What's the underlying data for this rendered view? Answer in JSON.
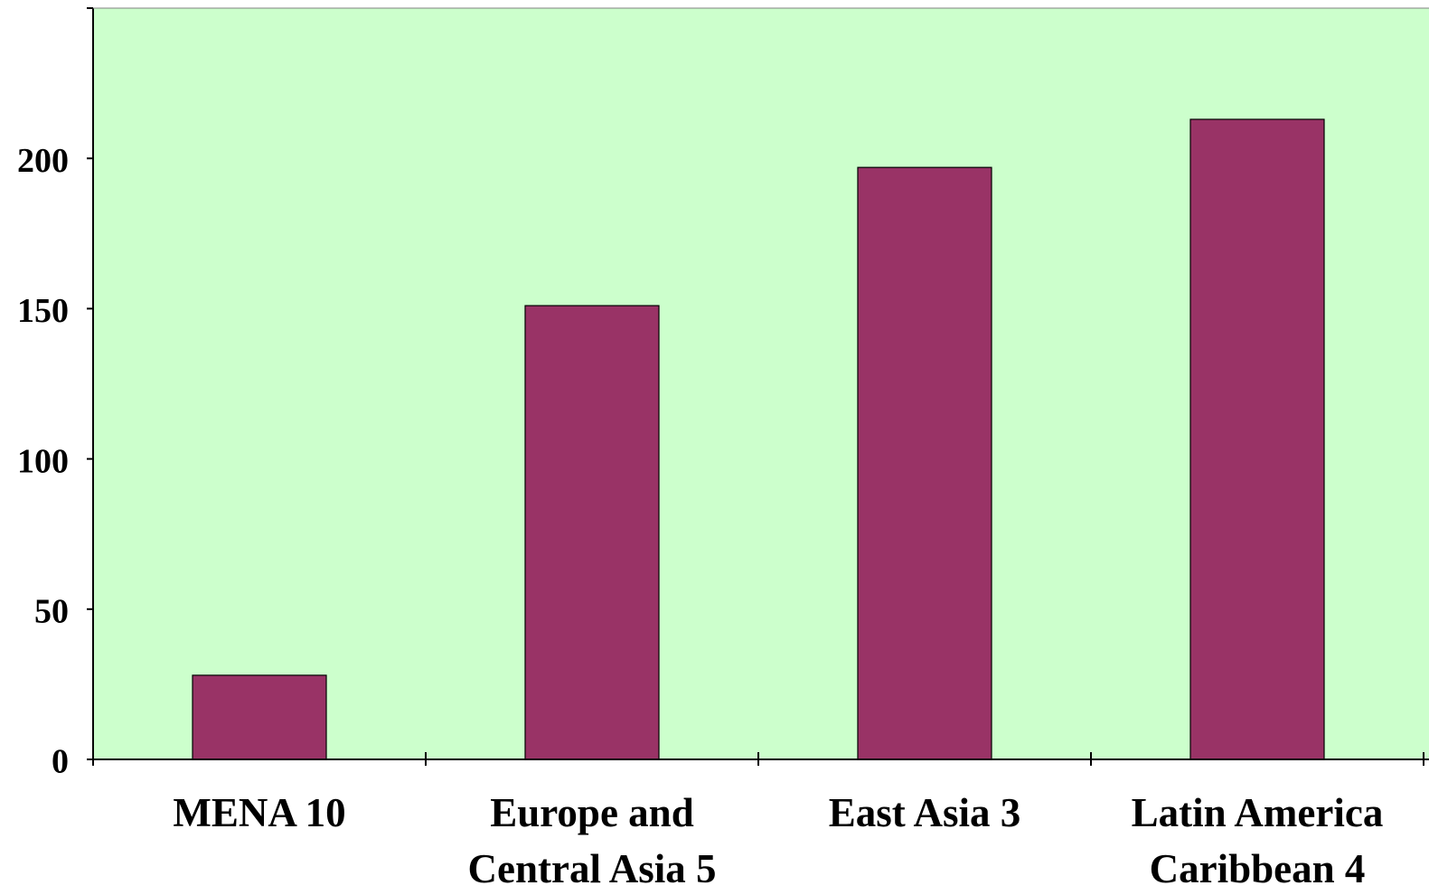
{
  "chart_data": {
    "type": "bar",
    "title": "",
    "xlabel": "",
    "ylabel": "",
    "categories": [
      [
        "MENA 10"
      ],
      [
        "Europe and",
        "Central Asia 5"
      ],
      [
        "East Asia 3"
      ],
      [
        "Latin America",
        "Caribbean 4"
      ]
    ],
    "values": [
      28,
      151,
      197,
      213
    ],
    "ylim": [
      0,
      250
    ],
    "yticks": [
      0,
      50,
      100,
      150,
      200
    ],
    "ytick_labels": [
      "0",
      "50",
      "100",
      "150",
      "200"
    ],
    "grid": false,
    "legend": "none",
    "colors": {
      "plot_background": "#ccffcc",
      "bar_fill": "#993366",
      "bar_stroke": "#000000",
      "axis": "#000000"
    }
  }
}
